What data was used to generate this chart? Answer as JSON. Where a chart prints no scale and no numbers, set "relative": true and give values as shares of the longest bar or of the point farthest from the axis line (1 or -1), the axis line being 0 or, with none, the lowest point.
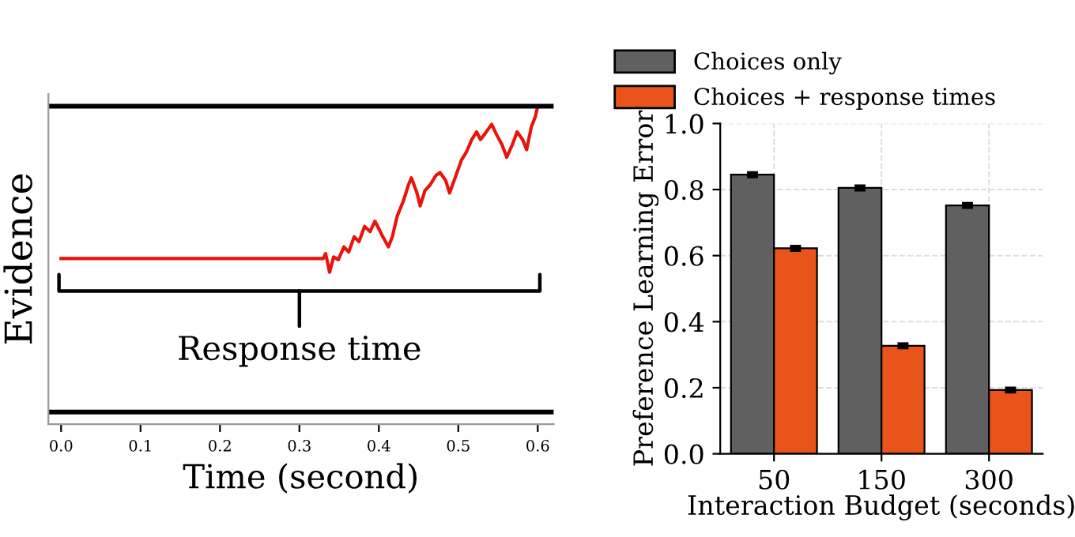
{
  "chart_data": [
    {
      "type": "line",
      "relative": true,
      "xlabel": "Time (second)",
      "ylabel": "Evidence",
      "xlim": [
        -0.016,
        0.62
      ],
      "xticks": [
        {
          "value": 0,
          "label": "0.0"
        },
        0.1,
        0.2,
        0.3,
        0.4,
        0.5,
        0.6
      ],
      "tick_labels": "x",
      "grid": false,
      "legend": false,
      "series": [
        {
          "color": "#e8140c",
          "x": [
            0.0,
            0.33,
            0.333,
            0.338,
            0.343,
            0.349,
            0.356,
            0.362,
            0.369,
            0.375,
            0.382,
            0.389,
            0.395,
            0.4,
            0.405,
            0.412,
            0.417,
            0.423,
            0.431,
            0.437,
            0.441,
            0.448,
            0.452,
            0.458,
            0.464,
            0.472,
            0.477,
            0.484,
            0.489,
            0.496,
            0.504,
            0.51,
            0.517,
            0.523,
            0.528,
            0.533,
            0.542,
            0.548,
            0.555,
            0.561,
            0.568,
            0.574,
            0.581,
            0.586,
            0.592,
            0.597,
            0.6
          ],
          "values": [
            0.502,
            0.502,
            0.518,
            0.457,
            0.507,
            0.498,
            0.54,
            0.523,
            0.573,
            0.557,
            0.607,
            0.59,
            0.624,
            0.599,
            0.573,
            0.54,
            0.573,
            0.64,
            0.691,
            0.741,
            0.766,
            0.716,
            0.674,
            0.724,
            0.741,
            0.774,
            0.783,
            0.758,
            0.716,
            0.766,
            0.824,
            0.849,
            0.891,
            0.916,
            0.891,
            0.908,
            0.941,
            0.908,
            0.874,
            0.833,
            0.874,
            0.916,
            0.891,
            0.858,
            0.933,
            0.966,
            1.0
          ]
        }
      ],
      "ref_lines": [
        {
          "axis": "y",
          "value": 1.0,
          "color": "#000000"
        },
        {
          "axis": "y",
          "value": 0,
          "color": "#000000"
        }
      ],
      "annotations": [
        "Response time"
      ]
    },
    {
      "type": "bar",
      "categories": [
        "50",
        "150",
        "300"
      ],
      "xlabel": "Interaction Budget (seconds)",
      "ylabel": "Preference Learning Error",
      "ylim": [
        0,
        1
      ],
      "yticks": [
        {
          "value": 0,
          "label": "0.0"
        },
        0.2,
        0.4,
        0.6,
        0.8,
        {
          "value": 1,
          "label": "1.0"
        }
      ],
      "grid": true,
      "legend": "top",
      "series": [
        {
          "name": "Choices only",
          "color": "#606060",
          "values": [
            0.845,
            0.805,
            0.752
          ],
          "errors": [
            0.004,
            0.004,
            0.004
          ]
        },
        {
          "name": "Choices + response times",
          "color": "#e8541a",
          "values": [
            0.622,
            0.327,
            0.193
          ],
          "errors": [
            0.004,
            0.004,
            0.004
          ]
        }
      ]
    }
  ]
}
